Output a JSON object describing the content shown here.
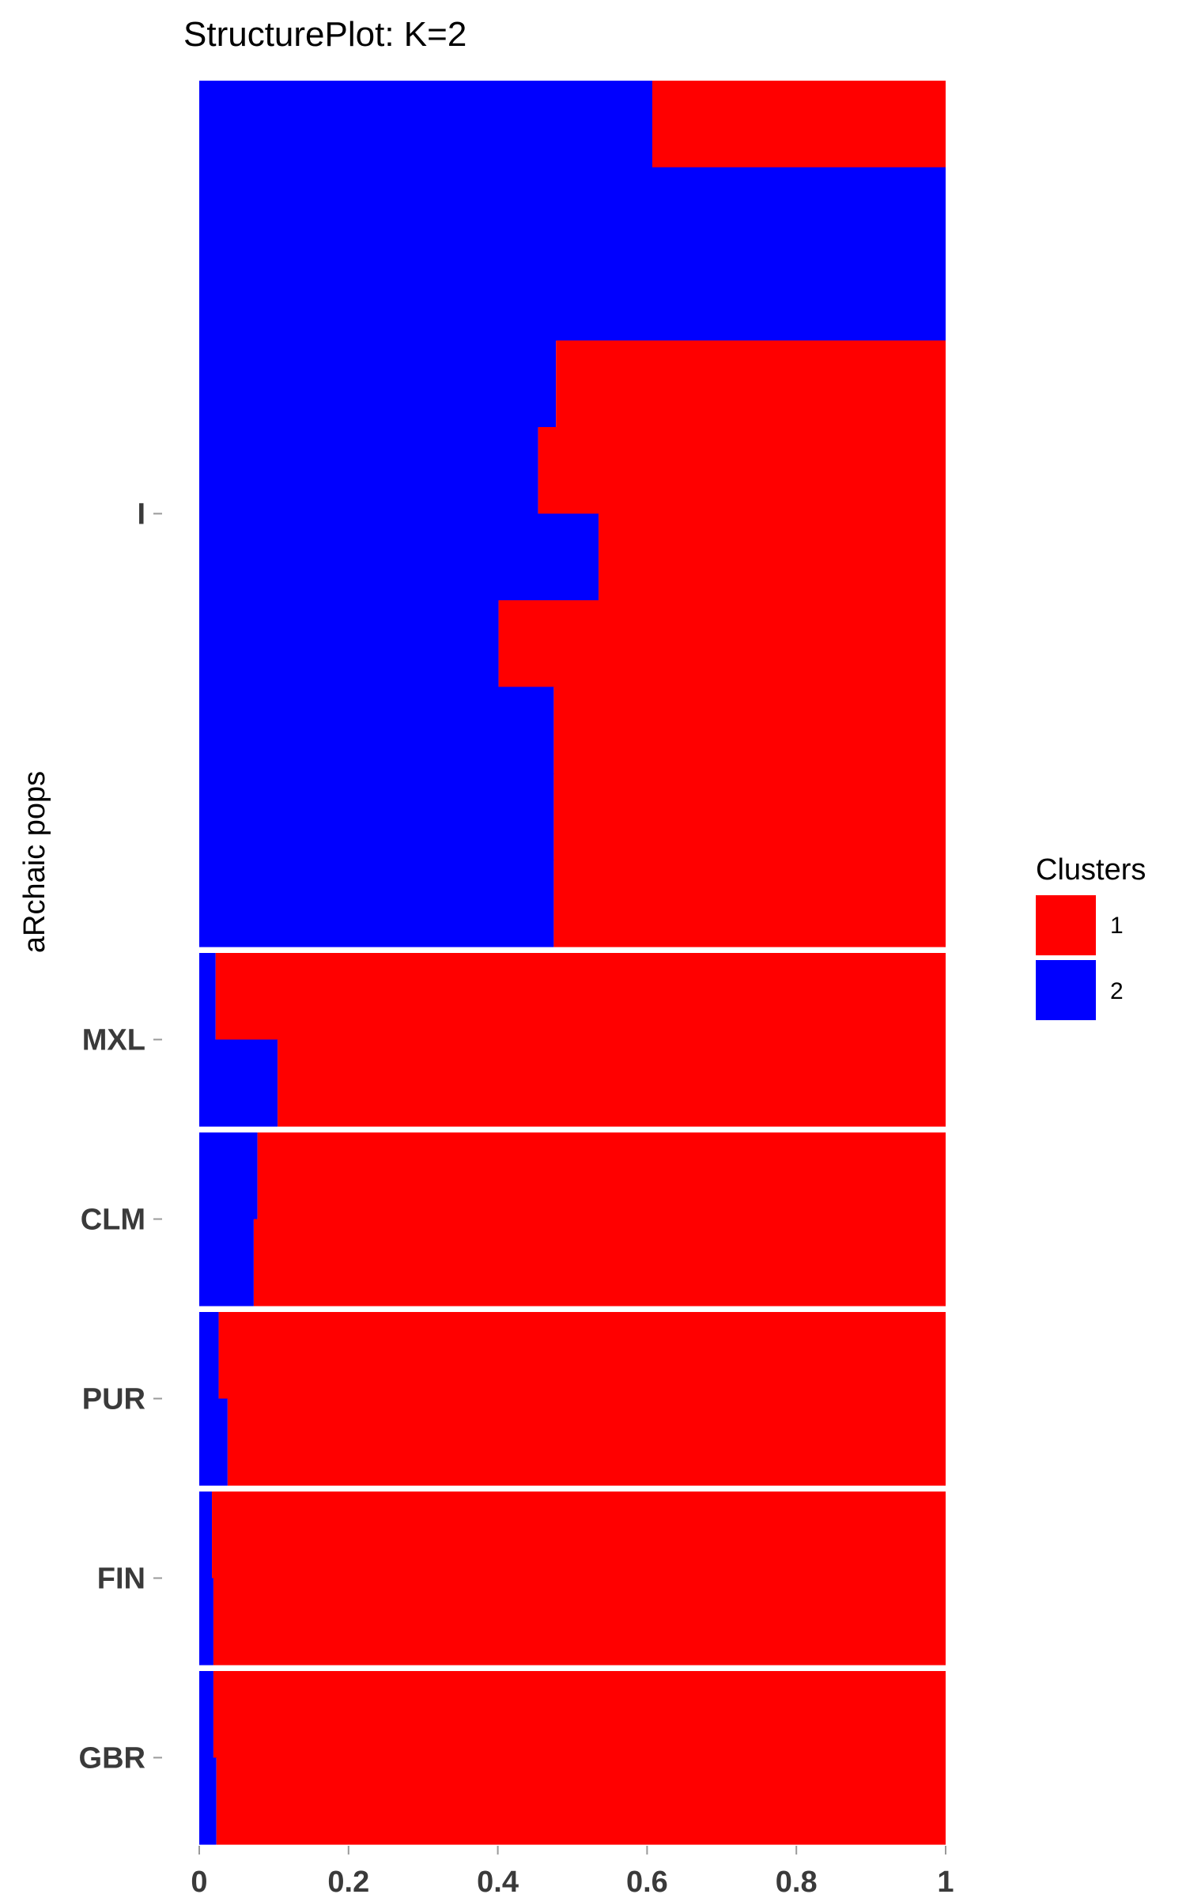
{
  "chart_data": {
    "type": "bar",
    "orientation": "horizontal",
    "stacked": true,
    "title": "StructurePlot: K=2",
    "ylabel": "aRchaic pops",
    "xlabel": "",
    "xlim": [
      0,
      1
    ],
    "xticks": [
      "0",
      "0.2",
      "0.4",
      "0.6",
      "0.8",
      "1"
    ],
    "grid": false,
    "legend": {
      "title": "Clusters",
      "position": "right",
      "entries": [
        {
          "label": "1",
          "color": "#ff0000"
        },
        {
          "label": "2",
          "color": "#0000ff"
        }
      ]
    },
    "series_colors": {
      "cluster_1": "#ff0000",
      "cluster_2": "#0000ff"
    },
    "groups": [
      {
        "name": "I",
        "cluster2": [
          0.607,
          1.0,
          1.0,
          0.478,
          0.454,
          0.535,
          0.401,
          0.475,
          0.475,
          0.475
        ]
      },
      {
        "name": "MXL",
        "cluster2": [
          0.022,
          0.105
        ]
      },
      {
        "name": "CLM",
        "cluster2": [
          0.078,
          0.073
        ]
      },
      {
        "name": "PUR",
        "cluster2": [
          0.026,
          0.038
        ]
      },
      {
        "name": "FIN",
        "cluster2": [
          0.017,
          0.019
        ]
      },
      {
        "name": "GBR",
        "cluster2": [
          0.019,
          0.023
        ]
      }
    ]
  }
}
